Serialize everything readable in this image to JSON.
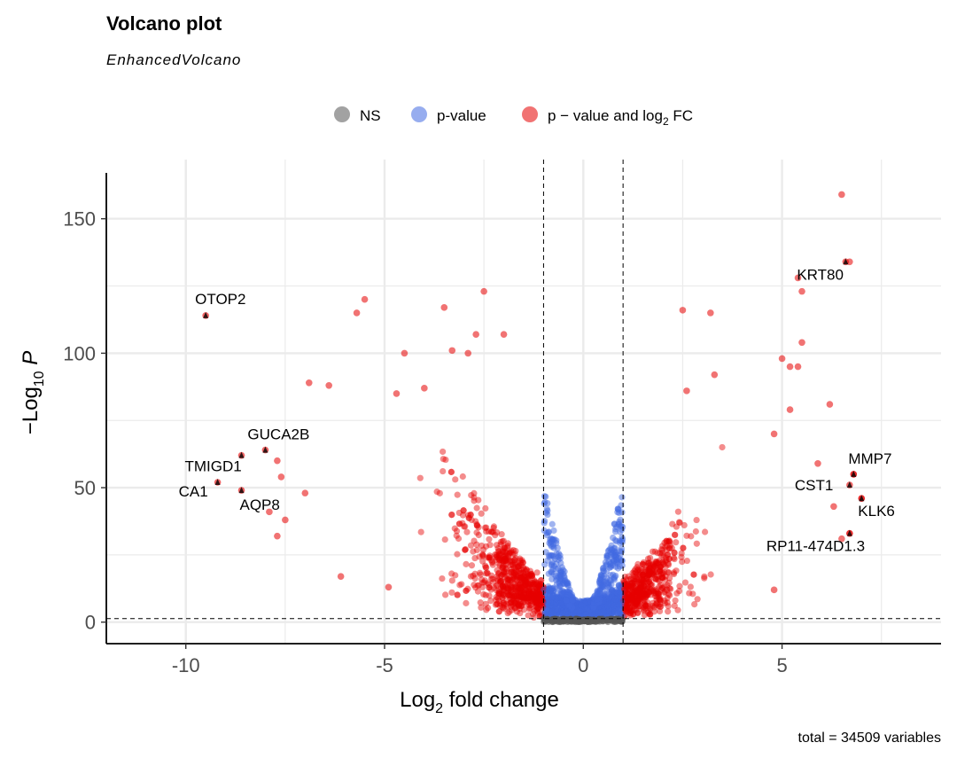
{
  "title": "Volcano plot",
  "subtitle": "EnhancedVolcano",
  "caption": "total = 34509 variables",
  "colors": {
    "ns": "#555555",
    "pvalue": "#4169E1",
    "both": "#E60000",
    "grid": "#EBEBEB",
    "axis": "#000000"
  },
  "chart_data": {
    "type": "scatter",
    "xlabel": "Log2 fold change",
    "ylabel": "−Log10 P",
    "xlim": [
      -12,
      9
    ],
    "ylim": [
      -8,
      172
    ],
    "x_ticks": [
      -10,
      -5,
      0,
      5
    ],
    "y_ticks": [
      0,
      50,
      100,
      150
    ],
    "grid": true,
    "legend_position": "top",
    "fc_cutoff": 1,
    "p_cutoff_log10": 1.3,
    "total_points": 34509,
    "legend": [
      {
        "name": "NS",
        "color": "#555555"
      },
      {
        "name": "p-value",
        "color": "#4169E1"
      },
      {
        "name": "p − value and log2 FC",
        "color": "#E60000"
      }
    ],
    "labeled_points": [
      {
        "label": "OTOP2",
        "x": -9.5,
        "y": 114
      },
      {
        "label": "GUCA2B",
        "x": -8.0,
        "y": 64
      },
      {
        "label": "TMIGD1",
        "x": -8.6,
        "y": 62
      },
      {
        "label": "CA1",
        "x": -9.2,
        "y": 52
      },
      {
        "label": "AQP8",
        "x": -8.6,
        "y": 49
      },
      {
        "label": "KRT80",
        "x": 6.6,
        "y": 134
      },
      {
        "label": "MMP7",
        "x": 6.8,
        "y": 55
      },
      {
        "label": "CST1",
        "x": 6.7,
        "y": 51
      },
      {
        "label": "KLK6",
        "x": 7.0,
        "y": 46
      },
      {
        "label": "RP11-474D1.3",
        "x": 6.7,
        "y": 33
      }
    ],
    "outlier_points": [
      {
        "x": 6.5,
        "y": 159
      },
      {
        "x": 6.7,
        "y": 134
      },
      {
        "x": 5.4,
        "y": 128
      },
      {
        "x": 5.5,
        "y": 123
      },
      {
        "x": 2.5,
        "y": 116
      },
      {
        "x": 3.2,
        "y": 115
      },
      {
        "x": 5.5,
        "y": 104
      },
      {
        "x": 5.0,
        "y": 98
      },
      {
        "x": 5.2,
        "y": 95
      },
      {
        "x": 5.4,
        "y": 95
      },
      {
        "x": 3.3,
        "y": 92
      },
      {
        "x": 6.2,
        "y": 81
      },
      {
        "x": 5.2,
        "y": 79
      },
      {
        "x": 2.6,
        "y": 86
      },
      {
        "x": -2.5,
        "y": 123
      },
      {
        "x": -5.5,
        "y": 120
      },
      {
        "x": -5.7,
        "y": 115
      },
      {
        "x": -3.5,
        "y": 117
      },
      {
        "x": -3.3,
        "y": 101
      },
      {
        "x": -2.9,
        "y": 100
      },
      {
        "x": -2.7,
        "y": 107
      },
      {
        "x": -2.0,
        "y": 107
      },
      {
        "x": -4.5,
        "y": 100
      },
      {
        "x": -6.9,
        "y": 89
      },
      {
        "x": -6.4,
        "y": 88
      },
      {
        "x": -4.0,
        "y": 87
      },
      {
        "x": -4.7,
        "y": 85
      },
      {
        "x": -7.6,
        "y": 54
      },
      {
        "x": -7.5,
        "y": 38
      },
      {
        "x": -7.0,
        "y": 48
      },
      {
        "x": -7.7,
        "y": 32
      },
      {
        "x": -7.9,
        "y": 41
      },
      {
        "x": -7.7,
        "y": 60
      },
      {
        "x": -6.1,
        "y": 17
      },
      {
        "x": -4.9,
        "y": 13
      },
      {
        "x": 2.1,
        "y": 12
      },
      {
        "x": 4.8,
        "y": 12
      },
      {
        "x": 6.3,
        "y": 43
      },
      {
        "x": 6.5,
        "y": 31
      },
      {
        "x": 5.9,
        "y": 59
      },
      {
        "x": 6.8,
        "y": 55
      },
      {
        "x": 7.0,
        "y": 46
      },
      {
        "x": 6.7,
        "y": 33
      },
      {
        "x": 4.8,
        "y": 70
      }
    ]
  }
}
